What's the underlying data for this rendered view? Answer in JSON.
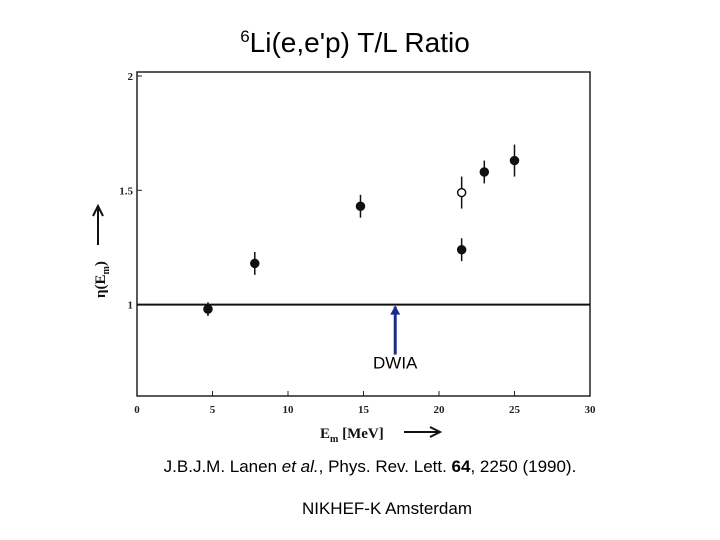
{
  "chart_data": {
    "type": "scatter",
    "title_sup": "6",
    "title": "Li(e,e'p) T/L Ratio",
    "x_label": [
      "E",
      "m",
      " [MeV]"
    ],
    "y_label": [
      "η(E",
      "m",
      ")"
    ],
    "xlim": [
      0,
      30
    ],
    "xticks": [
      0,
      5,
      10,
      15,
      20,
      25,
      30
    ],
    "ylim": [
      0.6,
      2
    ],
    "yticks": [
      1,
      1.5,
      2
    ],
    "reference_line": 1,
    "annotation": {
      "text": "DWIA",
      "x": 17.1
    },
    "series": [
      {
        "marker": "filled",
        "color": "#111111",
        "x": [
          4.7,
          7.8,
          14.8,
          21.5,
          23.0,
          25.0
        ],
        "values": [
          0.98,
          1.18,
          1.43,
          1.24,
          1.58,
          1.63
        ],
        "errors": [
          0.03,
          0.05,
          0.05,
          0.05,
          0.05,
          0.07
        ]
      },
      {
        "marker": "open",
        "color": "#111111",
        "x": [
          21.5
        ],
        "values": [
          1.49
        ],
        "errors": [
          0.07
        ]
      }
    ],
    "citation": [
      "J.B.J.M. Lanen ",
      "et al.",
      ", Phys. Rev. Lett. ",
      "64",
      ", 2250 (1990)."
    ],
    "footer": "NIKHEF-K Amsterdam"
  }
}
